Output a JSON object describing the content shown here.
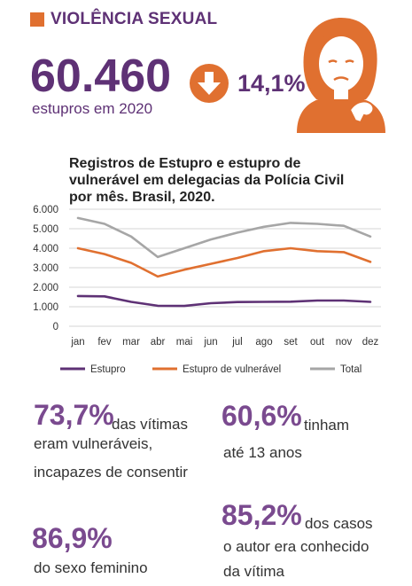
{
  "header": {
    "title": "VIOLÊNCIA SEXUAL"
  },
  "headline": {
    "number": "60.460",
    "caption": "estupros em 2020",
    "change": "14,1%",
    "change_direction": "down-arrow-icon"
  },
  "colors": {
    "purple": "#5e3175",
    "orange": "#e07030",
    "gray": "#a6a6a6"
  },
  "chart_data": {
    "type": "line",
    "title": "Registros de Estupro e estupro de vulnerável em delegacias da Polícia Civil por mês. Brasil, 2020.",
    "categories": [
      "jan",
      "fev",
      "mar",
      "abr",
      "mai",
      "jun",
      "jul",
      "ago",
      "set",
      "out",
      "nov",
      "dez"
    ],
    "y_tick_labels": [
      "0",
      "1.000",
      "2.000",
      "3.000",
      "4.000",
      "5.000",
      "6.000"
    ],
    "ylim": [
      0,
      6000
    ],
    "grid": true,
    "legend_position": "bottom",
    "series": [
      {
        "name": "Estupro",
        "color": "#5e3175",
        "values": [
          1550,
          1530,
          1250,
          1050,
          1040,
          1180,
          1240,
          1250,
          1260,
          1320,
          1320,
          1250
        ]
      },
      {
        "name": "Estupro de vulnerável",
        "color": "#e07030",
        "values": [
          4000,
          3700,
          3250,
          2550,
          2900,
          3200,
          3500,
          3850,
          4000,
          3850,
          3800,
          3300
        ]
      },
      {
        "name": "Total",
        "color": "#a6a6a6",
        "values": [
          5550,
          5250,
          4600,
          3550,
          4000,
          4450,
          4800,
          5100,
          5300,
          5250,
          5150,
          4600
        ]
      }
    ]
  },
  "stats": {
    "s1": {
      "pct": "73,7%",
      "l1": "das vítimas",
      "l2": "eram vulneráveis,",
      "l3": "incapazes de consentir"
    },
    "s2": {
      "pct": "60,6%",
      "l1": "tinham",
      "l2": "até 13 anos"
    },
    "s3": {
      "pct": "86,9%",
      "l2": "do sexo feminino"
    },
    "s4": {
      "pct": "85,2%",
      "l1": "dos casos",
      "l2": "o autor era conhecido",
      "l3": "da vítima"
    }
  }
}
